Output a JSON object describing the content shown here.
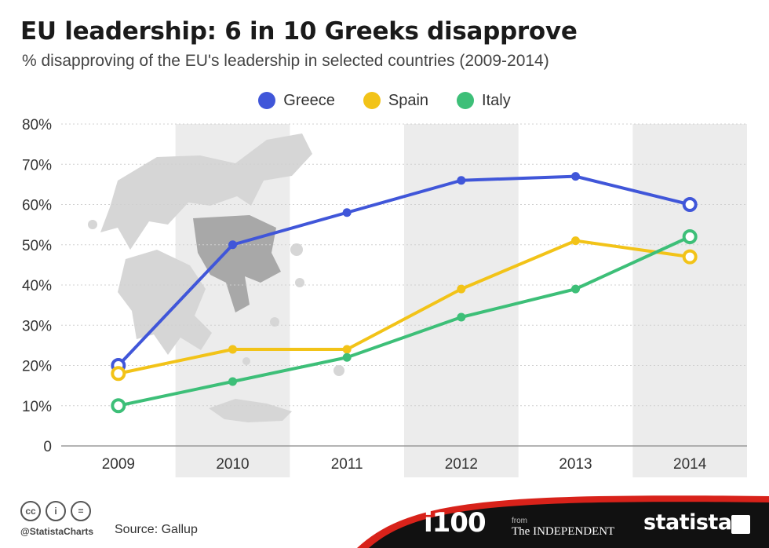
{
  "chart_data": {
    "type": "line",
    "title": "EU leadership: 6 in 10 Greeks disapprove",
    "subtitle": "% disapproving of the EU's leadership in selected countries (2009-2014)",
    "categories": [
      "2009",
      "2010",
      "2011",
      "2012",
      "2013",
      "2014"
    ],
    "series": [
      {
        "name": "Greece",
        "color": "#4056d9",
        "values": [
          20,
          50,
          58,
          66,
          67,
          60
        ]
      },
      {
        "name": "Spain",
        "color": "#f2c318",
        "values": [
          18,
          24,
          24,
          39,
          51,
          47
        ]
      },
      {
        "name": "Italy",
        "color": "#3dbf78",
        "values": [
          10,
          16,
          22,
          32,
          39,
          52
        ]
      }
    ],
    "yticks": [
      "0",
      "10%",
      "20%",
      "30%",
      "40%",
      "50%",
      "60%",
      "70%",
      "80%"
    ],
    "ylim": [
      0,
      80
    ],
    "legend": "top-center",
    "grid": true,
    "background_map": "greece-map-silhouette"
  },
  "footer": {
    "handle": "@StatistaCharts",
    "source": "Source: Gallup",
    "cc_icons": [
      "cc",
      "by",
      "nd"
    ],
    "logos": {
      "i100": "i100",
      "from": "from",
      "independent": "The INDEPENDENT",
      "statista": "statista"
    }
  }
}
